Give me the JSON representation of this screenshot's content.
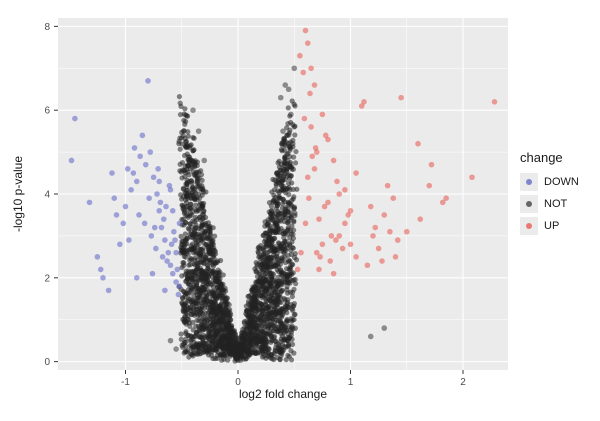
{
  "chart_data": {
    "type": "scatter",
    "title": "",
    "xlabel": "log2 fold change",
    "ylabel": "-log10 p-value",
    "xlim": [
      -1.6,
      2.4
    ],
    "ylim": [
      -0.2,
      8.2
    ],
    "x_ticks": [
      -1,
      0,
      1,
      2
    ],
    "x_tick_labels": [
      "-1",
      "0",
      "1",
      "2"
    ],
    "y_ticks": [
      0,
      2,
      4,
      6,
      8
    ],
    "y_tick_labels": [
      "0",
      "2",
      "4",
      "6",
      "8"
    ],
    "grid": true,
    "background": "#ebebeb",
    "legend_placement": "right",
    "legend": {
      "title": "change",
      "entries": [
        {
          "label": "DOWN",
          "color": "#5b62c4"
        },
        {
          "label": "NOT",
          "color": "#3a3a3a"
        },
        {
          "label": "UP",
          "color": "#e8534a"
        }
      ]
    },
    "series": [
      {
        "name": "DOWN",
        "color": "#5b62c4",
        "x": [
          -1.45,
          -1.48,
          -1.32,
          -1.2,
          -1.15,
          -1.05,
          -1.02,
          -0.98,
          -0.92,
          -0.85,
          -0.8,
          -0.78,
          -0.75,
          -0.72,
          -0.7,
          -0.68,
          -0.65,
          -0.62,
          -0.6,
          -0.58,
          -0.55,
          -0.53,
          -1.1,
          -1.0,
          -0.95,
          -0.9,
          -0.88,
          -0.82,
          -0.77,
          -0.73,
          -0.69,
          -0.66,
          -0.63,
          -0.61,
          -0.59,
          -0.57,
          -0.54,
          -1.22,
          -1.12,
          -0.97,
          -0.87,
          -0.79,
          -0.74,
          -0.71,
          -0.67,
          -0.64,
          -0.6,
          -0.56,
          -0.52,
          -1.25,
          -1.08,
          -0.93,
          -0.83,
          -0.76,
          -0.7,
          -0.65,
          -0.58,
          -0.55,
          -0.52,
          -0.9
        ],
        "y": [
          5.8,
          4.8,
          3.8,
          2.0,
          1.7,
          2.8,
          3.3,
          4.6,
          5.1,
          5.4,
          6.7,
          5.0,
          4.4,
          4.0,
          3.6,
          3.2,
          2.9,
          2.6,
          2.3,
          2.1,
          1.9,
          1.6,
          3.9,
          3.7,
          4.1,
          4.3,
          3.5,
          4.7,
          3.0,
          2.7,
          3.8,
          3.4,
          2.4,
          4.2,
          2.8,
          3.1,
          2.2,
          2.2,
          4.5,
          2.9,
          4.9,
          3.9,
          3.2,
          4.6,
          2.5,
          3.7,
          4.1,
          2.9,
          1.8,
          2.5,
          3.5,
          4.5,
          3.3,
          2.1,
          4.3,
          1.7,
          3.6,
          2.6,
          3.3,
          2.0
        ]
      },
      {
        "name": "UP",
        "color": "#e8534a",
        "x": [
          2.28,
          2.08,
          1.85,
          1.82,
          1.72,
          1.7,
          1.6,
          1.5,
          1.45,
          1.4,
          1.35,
          1.3,
          1.25,
          1.2,
          1.15,
          1.1,
          1.05,
          1.0,
          0.95,
          0.9,
          0.85,
          0.8,
          0.75,
          0.72,
          0.7,
          0.68,
          0.65,
          0.62,
          0.6,
          0.58,
          0.55,
          0.53,
          0.62,
          0.65,
          0.7,
          0.75,
          0.8,
          0.85,
          0.9,
          0.95,
          1.0,
          1.05,
          1.12,
          1.18,
          1.22,
          1.28,
          1.33,
          1.38,
          0.6,
          0.66,
          0.73,
          0.78,
          0.83,
          0.88,
          0.93,
          0.98,
          0.56,
          0.59,
          0.63,
          0.68,
          0.72,
          0.77,
          0.82,
          0.87,
          1.62,
          1.42,
          0.64,
          0.69
        ],
        "y": [
          6.2,
          4.4,
          3.9,
          3.8,
          4.7,
          4.2,
          5.2,
          3.1,
          6.3,
          2.5,
          3.1,
          3.5,
          2.7,
          3.0,
          2.3,
          6.1,
          4.5,
          3.6,
          4.1,
          3.0,
          4.8,
          5.3,
          5.9,
          3.4,
          2.6,
          6.6,
          7.0,
          7.6,
          7.9,
          6.9,
          7.3,
          2.2,
          4.4,
          5.6,
          5.0,
          2.8,
          3.8,
          2.1,
          4.0,
          3.3,
          2.8,
          2.5,
          6.2,
          3.7,
          3.2,
          2.4,
          4.2,
          3.9,
          3.3,
          4.9,
          2.5,
          5.4,
          3.0,
          4.3,
          2.7,
          3.5,
          2.6,
          5.8,
          3.9,
          4.6,
          2.2,
          3.7,
          2.4,
          2.9,
          3.4,
          2.9,
          6.4,
          5.1
        ]
      },
      {
        "name": "NOT",
        "color": "#3a3a3a",
        "x": [
          -0.4,
          -0.35,
          -0.3,
          -0.45,
          -0.5,
          -0.25,
          -0.2,
          -0.15,
          -0.1,
          -0.05,
          0.0,
          0.05,
          0.1,
          0.15,
          0.2,
          0.25,
          0.3,
          0.35,
          0.4,
          0.45,
          0.5,
          -0.33,
          -0.38,
          -0.48,
          1.18,
          1.3,
          0.38,
          0.42,
          0.47,
          -0.6,
          -0.55,
          -0.42
        ],
        "y": [
          6.0,
          5.5,
          4.8,
          3.5,
          2.8,
          2.6,
          2.0,
          1.2,
          0.8,
          0.4,
          0.1,
          0.4,
          0.9,
          1.4,
          2.0,
          2.8,
          3.6,
          4.5,
          5.5,
          6.5,
          7.0,
          0.2,
          0.6,
          1.0,
          0.6,
          0.8,
          6.3,
          6.6,
          5.9,
          0.5,
          0.3,
          0.2
        ]
      }
    ]
  }
}
